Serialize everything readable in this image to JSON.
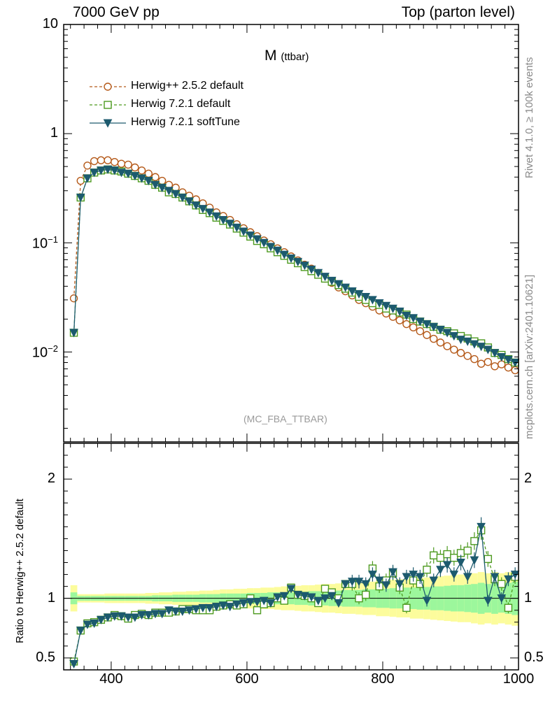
{
  "header": {
    "left": "7000 GeV pp",
    "right": "Top (parton level)"
  },
  "side_labels": {
    "rivet": "Rivet 4.1.0, ≥ 100k events",
    "mcplots": "mcplots.cern.ch [arXiv:2401.10621]"
  },
  "plot_title_main": "M",
  "plot_title_sub": "(ttbar)",
  "analysis_tag": "(MC_FBA_TTBAR)",
  "ratio_ylabel": "Ratio to Herwig++ 2.5.2 default",
  "colors": {
    "herwigpp": "#b55a1a",
    "h721": "#4d9a1f",
    "soft": "#1c5a6e",
    "band_green": "#9cf79c",
    "band_yellow": "#fcfc9c"
  },
  "legend": [
    {
      "name": "Herwig++ 2.5.2 default",
      "marker": "circle-open",
      "style": "dashed"
    },
    {
      "name": "Herwig 7.2.1 default",
      "marker": "square-open",
      "style": "dashed"
    },
    {
      "name": "Herwig 7.2.1 softTune",
      "marker": "triangle-down-filled",
      "style": "solid"
    }
  ],
  "chart_data": [
    {
      "type": "line",
      "title": "M (ttbar)",
      "xlabel": "",
      "ylabel": "",
      "yscale": "log",
      "xlim": [
        330,
        1000
      ],
      "ylim": [
        0.0015,
        10
      ],
      "y_ticks": [
        0.01,
        0.1,
        1,
        10
      ],
      "y_tick_labels": [
        {
          "base": "10",
          "exp": "−2"
        },
        {
          "base": "10",
          "exp": "−1"
        },
        {
          "base": "1",
          "exp": ""
        },
        {
          "base": "10",
          "exp": ""
        }
      ],
      "x": [
        345,
        355,
        365,
        375,
        385,
        395,
        405,
        415,
        425,
        435,
        445,
        455,
        465,
        475,
        485,
        495,
        505,
        515,
        525,
        535,
        545,
        555,
        565,
        575,
        585,
        595,
        605,
        615,
        625,
        635,
        645,
        655,
        665,
        675,
        685,
        695,
        705,
        715,
        725,
        735,
        745,
        755,
        765,
        775,
        785,
        795,
        805,
        815,
        825,
        835,
        845,
        855,
        865,
        875,
        885,
        895,
        905,
        915,
        925,
        935,
        945,
        955,
        965,
        975,
        985,
        995
      ],
      "series": [
        {
          "name": "Herwig++ 2.5.2 default",
          "values": [
            0.031,
            0.37,
            0.51,
            0.56,
            0.57,
            0.57,
            0.55,
            0.53,
            0.52,
            0.49,
            0.46,
            0.43,
            0.4,
            0.37,
            0.34,
            0.32,
            0.29,
            0.27,
            0.25,
            0.23,
            0.21,
            0.19,
            0.176,
            0.162,
            0.148,
            0.136,
            0.125,
            0.115,
            0.105,
            0.097,
            0.089,
            0.082,
            0.075,
            0.069,
            0.063,
            0.058,
            0.053,
            0.047,
            0.043,
            0.039,
            0.036,
            0.033,
            0.03,
            0.028,
            0.026,
            0.024,
            0.0225,
            0.021,
            0.0195,
            0.018,
            0.0168,
            0.0155,
            0.0143,
            0.0132,
            0.0122,
            0.0113,
            0.0105,
            0.0098,
            0.0092,
            0.0086,
            0.0078,
            0.0081,
            0.0074,
            0.0077,
            0.0072,
            0.0068
          ]
        },
        {
          "name": "Herwig 7.2.1 default",
          "values": [
            0.015,
            0.26,
            0.39,
            0.44,
            0.46,
            0.47,
            0.46,
            0.45,
            0.43,
            0.41,
            0.39,
            0.37,
            0.34,
            0.32,
            0.29,
            0.28,
            0.26,
            0.24,
            0.22,
            0.2,
            0.187,
            0.17,
            0.159,
            0.147,
            0.135,
            0.124,
            0.114,
            0.104,
            0.097,
            0.089,
            0.082,
            0.076,
            0.07,
            0.065,
            0.06,
            0.055,
            0.051,
            0.047,
            0.044,
            0.041,
            0.038,
            0.035,
            0.032,
            0.03,
            0.028,
            0.027,
            0.025,
            0.024,
            0.023,
            0.022,
            0.02,
            0.019,
            0.018,
            0.017,
            0.016,
            0.0155,
            0.0148,
            0.014,
            0.0133,
            0.0125,
            0.012,
            0.011,
            0.0098,
            0.0094,
            0.0086,
            0.008
          ]
        },
        {
          "name": "Herwig 7.2.1 softTune",
          "values": [
            0.015,
            0.26,
            0.39,
            0.44,
            0.46,
            0.47,
            0.46,
            0.44,
            0.43,
            0.41,
            0.39,
            0.37,
            0.34,
            0.32,
            0.3,
            0.28,
            0.26,
            0.24,
            0.22,
            0.205,
            0.19,
            0.175,
            0.162,
            0.15,
            0.138,
            0.127,
            0.117,
            0.108,
            0.1,
            0.092,
            0.085,
            0.078,
            0.072,
            0.067,
            0.062,
            0.057,
            0.053,
            0.049,
            0.045,
            0.042,
            0.039,
            0.036,
            0.034,
            0.032,
            0.03,
            0.028,
            0.0265,
            0.025,
            0.0235,
            0.0215,
            0.0205,
            0.019,
            0.018,
            0.017,
            0.016,
            0.015,
            0.014,
            0.013,
            0.0125,
            0.0118,
            0.0112,
            0.0105,
            0.0098,
            0.009,
            0.0085,
            0.008
          ]
        }
      ]
    },
    {
      "type": "line",
      "title": "",
      "xlabel": "",
      "ylabel": "Ratio to Herwig++ 2.5.2 default",
      "xlim": [
        330,
        1000
      ],
      "ylim": [
        0.4,
        2.3
      ],
      "x_ticks": [
        400,
        600,
        800,
        1000
      ],
      "y_ticks": [
        0.5,
        1,
        2
      ],
      "y_tick_labels": [
        "0.5",
        "1",
        "2"
      ],
      "x": [
        345,
        355,
        365,
        375,
        385,
        395,
        405,
        415,
        425,
        435,
        445,
        455,
        465,
        475,
        485,
        495,
        505,
        515,
        525,
        535,
        545,
        555,
        565,
        575,
        585,
        595,
        605,
        615,
        625,
        635,
        645,
        655,
        665,
        675,
        685,
        695,
        705,
        715,
        725,
        735,
        745,
        755,
        765,
        775,
        785,
        795,
        805,
        815,
        825,
        835,
        845,
        855,
        865,
        875,
        885,
        895,
        905,
        915,
        925,
        935,
        945,
        955,
        965,
        975,
        985,
        995
      ],
      "band_green_halfwidth": [
        0.05,
        0.02,
        0.02,
        0.02,
        0.02,
        0.02,
        0.02,
        0.02,
        0.02,
        0.02,
        0.02,
        0.02,
        0.025,
        0.025,
        0.025,
        0.03,
        0.03,
        0.03,
        0.03,
        0.035,
        0.035,
        0.035,
        0.04,
        0.04,
        0.04,
        0.04,
        0.045,
        0.045,
        0.045,
        0.05,
        0.05,
        0.05,
        0.05,
        0.055,
        0.055,
        0.06,
        0.06,
        0.06,
        0.065,
        0.065,
        0.07,
        0.07,
        0.07,
        0.075,
        0.075,
        0.08,
        0.08,
        0.085,
        0.085,
        0.09,
        0.09,
        0.095,
        0.095,
        0.1,
        0.1,
        0.105,
        0.11,
        0.11,
        0.115,
        0.12,
        0.13,
        0.12,
        0.13,
        0.12,
        0.13,
        0.14
      ],
      "band_yellow_halfwidth": [
        0.11,
        0.035,
        0.035,
        0.035,
        0.035,
        0.04,
        0.04,
        0.04,
        0.04,
        0.04,
        0.04,
        0.045,
        0.045,
        0.05,
        0.05,
        0.055,
        0.055,
        0.06,
        0.06,
        0.065,
        0.065,
        0.07,
        0.075,
        0.075,
        0.08,
        0.08,
        0.085,
        0.085,
        0.09,
        0.09,
        0.095,
        0.1,
        0.1,
        0.105,
        0.11,
        0.11,
        0.115,
        0.12,
        0.12,
        0.125,
        0.13,
        0.13,
        0.135,
        0.14,
        0.14,
        0.15,
        0.15,
        0.155,
        0.16,
        0.16,
        0.17,
        0.17,
        0.175,
        0.18,
        0.185,
        0.19,
        0.195,
        0.2,
        0.2,
        0.21,
        0.22,
        0.21,
        0.22,
        0.21,
        0.22,
        0.23
      ],
      "series": [
        {
          "name": "Herwig 7.2.1 default",
          "values": [
            0.47,
            0.73,
            0.79,
            0.8,
            0.82,
            0.84,
            0.86,
            0.85,
            0.83,
            0.86,
            0.87,
            0.86,
            0.88,
            0.88,
            0.88,
            0.89,
            0.91,
            0.91,
            0.9,
            0.9,
            0.9,
            0.93,
            0.94,
            0.95,
            0.94,
            0.95,
            1.0,
            0.9,
            0.95,
            0.96,
            1.0,
            0.98,
            1.09,
            1.03,
            1.02,
            1.0,
            0.96,
            1.08,
            1.05,
            1.0,
            1.12,
            1.12,
            1.0,
            1.03,
            1.25,
            1.1,
            1.15,
            1.21,
            1.09,
            0.92,
            1.15,
            1.12,
            1.24,
            1.36,
            1.34,
            1.37,
            1.34,
            1.38,
            1.4,
            1.48,
            1.57,
            1.33,
            1.16,
            1.12,
            0.92,
            1.18
          ]
        },
        {
          "name": "Herwig 7.2.1 softTune",
          "values": [
            0.45,
            0.73,
            0.78,
            0.79,
            0.82,
            0.84,
            0.85,
            0.85,
            0.84,
            0.84,
            0.86,
            0.86,
            0.87,
            0.87,
            0.9,
            0.89,
            0.89,
            0.9,
            0.91,
            0.92,
            0.92,
            0.93,
            0.94,
            0.93,
            0.95,
            0.96,
            0.97,
            0.97,
            0.98,
            0.96,
            1.01,
            1.02,
            1.08,
            1.03,
            1.02,
            1.01,
            0.98,
            1.0,
            1.02,
            0.96,
            1.12,
            1.14,
            1.14,
            1.12,
            1.2,
            1.15,
            1.11,
            1.22,
            1.12,
            1.18,
            1.2,
            1.18,
            0.98,
            1.15,
            1.24,
            1.28,
            1.2,
            1.3,
            1.18,
            1.32,
            1.6,
            0.98,
            1.18,
            1.0,
            1.16,
            1.2
          ]
        }
      ]
    }
  ]
}
